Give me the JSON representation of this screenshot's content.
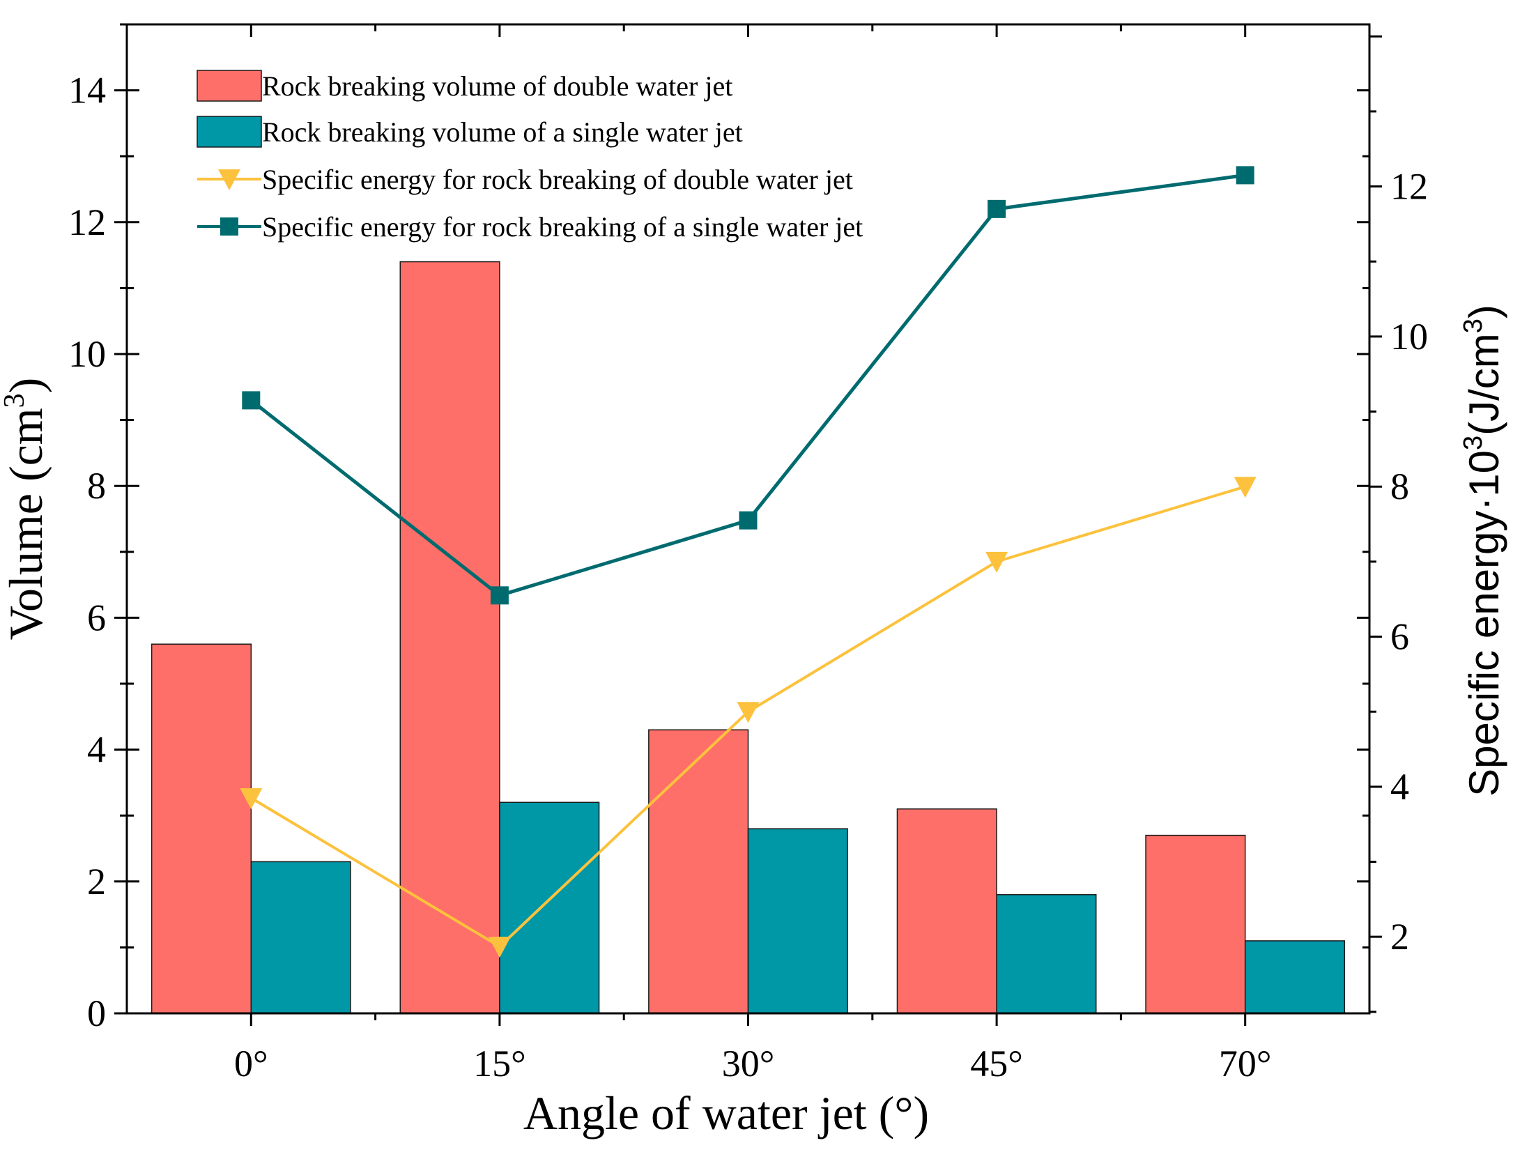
{
  "chart_data": {
    "type": "bar+line",
    "xlabel": "Angle of water jet (°)",
    "ylabel": {
      "main": "Volume (cm",
      "sup": "3",
      "tail": ")"
    },
    "y2label": {
      "main": "Specific energy·10",
      "sup1": "3",
      "mid": "(J/cm",
      "sup2": "3",
      "tail": ")"
    },
    "categories": [
      "0°",
      "15°",
      "30°",
      "45°",
      "70°"
    ],
    "ylim": [
      0,
      15
    ],
    "yticks": [
      "0",
      "2",
      "4",
      "6",
      "8",
      "10",
      "12",
      "14"
    ],
    "ytick_values": [
      0,
      2,
      4,
      6,
      8,
      10,
      12,
      14
    ],
    "y2lim": [
      0.98,
      14.16
    ],
    "y2ticks": [
      "2",
      "4",
      "6",
      "8",
      "10",
      "12"
    ],
    "y2tick_values": [
      2,
      4,
      6,
      8,
      10,
      12
    ],
    "bar_series": [
      {
        "name": "Rock breaking volume of double water jet",
        "color": "#ff6f69",
        "values": [
          5.6,
          11.4,
          4.3,
          3.1,
          2.7
        ]
      },
      {
        "name": "Rock breaking volume of a single water jet",
        "color": "#0097a7",
        "values": [
          2.3,
          3.2,
          2.8,
          1.8,
          1.1
        ]
      }
    ],
    "line_series": [
      {
        "name": "Specific energy for rock breaking of double water jet",
        "color": "#fcc23d",
        "marker": "triangle-down",
        "values": [
          3.85,
          1.87,
          5.0,
          7.0,
          8.0
        ]
      },
      {
        "name": "Specific energy for rock breaking of a single water jet",
        "color": "#006b6f",
        "marker": "square",
        "values": [
          9.15,
          6.55,
          7.55,
          11.7,
          12.15
        ]
      }
    ]
  }
}
